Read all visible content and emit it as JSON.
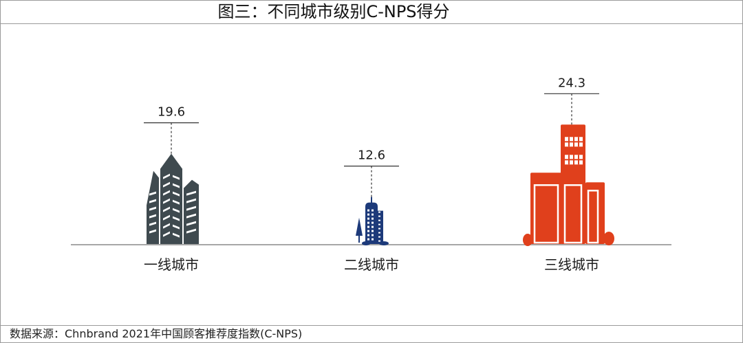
{
  "title": "图三：不同城市级别C-NPS得分",
  "source": "数据来源：Chnbrand 2021年中国顾客推荐度指数(C-NPS)",
  "colors": {
    "tier1": "#3f4a4f",
    "tier2": "#1d3a7a",
    "tier3": "#e0401c",
    "axis": "#8a8a8a",
    "leader": "#333333"
  },
  "chart_data": {
    "type": "bar",
    "title": "图三：不同城市级别C-NPS得分",
    "categories": [
      "一线城市",
      "二线城市",
      "三线城市"
    ],
    "values": [
      19.6,
      12.6,
      24.3
    ],
    "value_labels": [
      "19.6",
      "12.6",
      "24.3"
    ],
    "icons": [
      "skyscraper-cluster-icon",
      "office-tower-icon",
      "lowrise-buildings-icon"
    ],
    "ylim": [
      0,
      30
    ],
    "grid": false,
    "legend": "none"
  }
}
